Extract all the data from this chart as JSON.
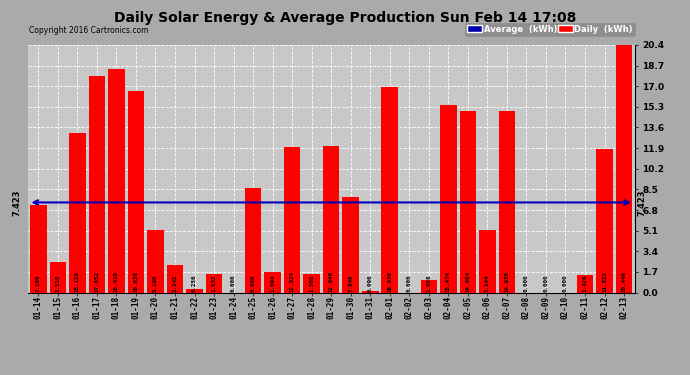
{
  "title": "Daily Solar Energy & Average Production Sun Feb 14 17:08",
  "copyright": "Copyright 2016 Cartronics.com",
  "average_value": 7.423,
  "average_label": "7.423",
  "categories": [
    "01-14",
    "01-15",
    "01-16",
    "01-17",
    "01-18",
    "01-19",
    "01-20",
    "01-21",
    "01-22",
    "01-23",
    "01-24",
    "01-25",
    "01-26",
    "01-27",
    "01-28",
    "01-29",
    "01-30",
    "01-31",
    "02-01",
    "02-02",
    "02-03",
    "02-04",
    "02-05",
    "02-06",
    "02-07",
    "02-08",
    "02-09",
    "02-10",
    "02-11",
    "02-12",
    "02-13"
  ],
  "values": [
    7.186,
    2.518,
    13.128,
    17.852,
    18.41,
    16.638,
    5.19,
    2.242,
    0.256,
    1.532,
    0.0,
    8.6,
    1.694,
    12.024,
    1.508,
    12.04,
    7.848,
    0.096,
    16.936,
    0.0,
    1.058,
    15.474,
    14.964,
    5.144,
    14.93,
    0.0,
    0.0,
    0.0,
    1.426,
    11.822,
    20.446
  ],
  "bar_color": "#ff0000",
  "line_color": "#0000bb",
  "background_color": "#aaaaaa",
  "plot_bg_color": "#c8c8c8",
  "ylim": [
    0.0,
    20.4
  ],
  "yticks": [
    0.0,
    1.7,
    3.4,
    5.1,
    6.8,
    8.5,
    10.2,
    11.9,
    13.6,
    15.3,
    17.0,
    18.7,
    20.4
  ],
  "legend_avg_color": "#0000aa",
  "legend_daily_color": "#ff0000",
  "legend_avg_text": "Average  (kWh)",
  "legend_daily_text": "Daily  (kWh)",
  "value_labels": [
    "7.186",
    "2.518",
    "13.128",
    "17.852",
    "18.410",
    "16.638",
    "5.190",
    "2.242",
    "0.256",
    "1.532",
    "0.000",
    "8.600",
    "1.694",
    "12.024",
    "1.508",
    "12.040",
    "7.848",
    "0.096",
    "16.936",
    "0.000",
    "1.058",
    "15.474",
    "14.964",
    "5.144",
    "14.930",
    "0.000",
    "0.000",
    "0.000",
    "1.426",
    "11.822",
    "20.446"
  ]
}
